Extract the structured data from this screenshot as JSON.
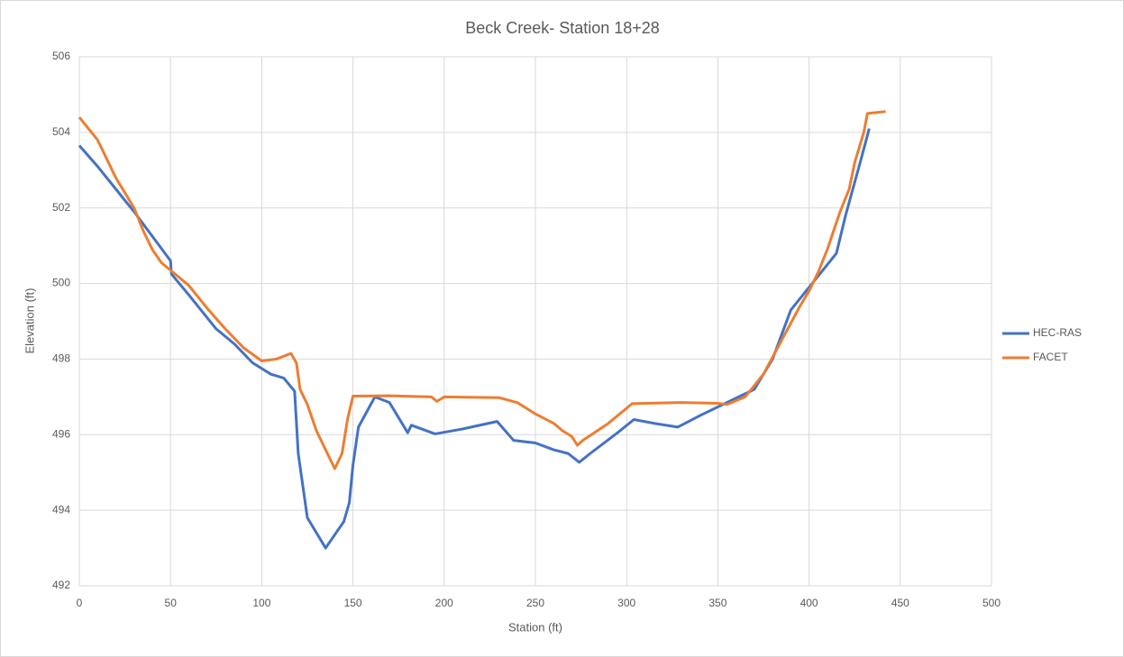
{
  "chart_data": {
    "type": "line",
    "title": "Beck Creek- Station 18+28",
    "x_label": "Station (ft)",
    "y_label": "Elevation (ft)",
    "xlim": [
      0,
      500
    ],
    "xticks": [
      0,
      50,
      100,
      150,
      200,
      250,
      300,
      350,
      400,
      450,
      500
    ],
    "ylim": [
      492,
      506
    ],
    "yticks": [
      492,
      494,
      496,
      498,
      500,
      502,
      504,
      506
    ],
    "grid": true,
    "legend": "right",
    "series": [
      {
        "name": "HEC-RAS",
        "color": "#4472c4",
        "x": [
          0,
          10,
          20,
          30,
          40,
          50,
          50.5,
          60,
          75,
          85,
          95,
          105,
          112,
          118,
          120,
          125,
          135,
          145,
          148,
          150,
          153,
          162,
          170,
          180,
          182,
          195,
          210,
          229,
          238,
          250,
          260,
          268,
          274,
          280,
          295,
          304,
          315,
          328,
          340,
          355,
          370,
          380,
          390,
          400,
          415,
          420,
          428,
          433
        ],
        "values": [
          503.65,
          503.1,
          502.5,
          501.9,
          501.25,
          500.6,
          500.25,
          499.7,
          498.8,
          498.4,
          497.9,
          497.6,
          497.5,
          497.15,
          495.5,
          493.8,
          493.0,
          493.7,
          494.2,
          495.2,
          496.2,
          497.0,
          496.85,
          496.05,
          496.25,
          496.02,
          496.15,
          496.35,
          495.85,
          495.78,
          495.6,
          495.5,
          495.27,
          495.5,
          496.05,
          496.4,
          496.3,
          496.2,
          496.5,
          496.85,
          497.2,
          498.0,
          499.3,
          499.9,
          500.8,
          501.8,
          503.2,
          504.1
        ]
      },
      {
        "name": "FACET",
        "color": "#ed7d31",
        "x": [
          0,
          5,
          10,
          15,
          20,
          25,
          30,
          35,
          40,
          45,
          50,
          60,
          70,
          80,
          90,
          100,
          108,
          116,
          119,
          121,
          125,
          130,
          135,
          140,
          144,
          147,
          150,
          170,
          193,
          196,
          200,
          230,
          240,
          250,
          260,
          265,
          270,
          273,
          276,
          290,
          303,
          330,
          350,
          355,
          365,
          375,
          385,
          395,
          400,
          405,
          410,
          417,
          422,
          425,
          430,
          432,
          442
        ],
        "values": [
          504.4,
          504.1,
          503.8,
          503.3,
          502.8,
          502.4,
          502.0,
          501.4,
          500.9,
          500.55,
          500.35,
          499.95,
          499.35,
          498.8,
          498.3,
          497.95,
          498.0,
          498.15,
          497.9,
          497.2,
          496.8,
          496.1,
          495.6,
          495.1,
          495.5,
          496.4,
          497.02,
          497.03,
          497.0,
          496.88,
          497.0,
          496.98,
          496.85,
          496.55,
          496.3,
          496.1,
          495.95,
          495.72,
          495.85,
          496.3,
          496.82,
          496.85,
          496.83,
          496.8,
          497.0,
          497.6,
          498.5,
          499.4,
          499.8,
          500.3,
          500.9,
          501.9,
          502.5,
          503.2,
          504.0,
          504.5,
          504.55
        ]
      }
    ]
  }
}
